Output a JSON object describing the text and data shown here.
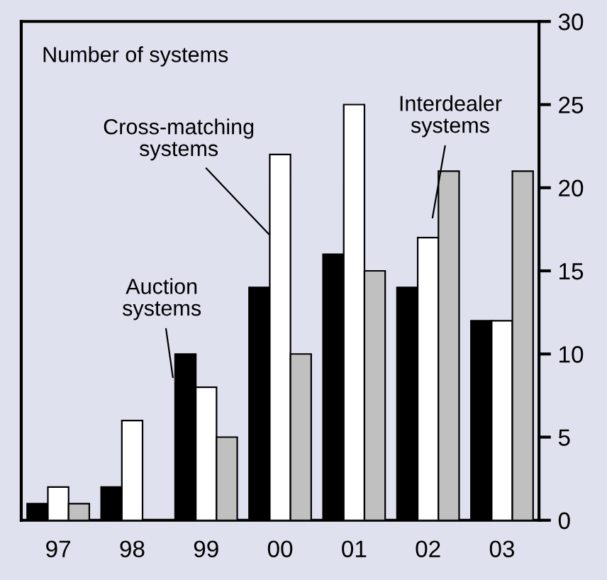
{
  "chart_data": {
    "type": "bar",
    "ylabel": "Number of systems",
    "categories": [
      "97",
      "98",
      "99",
      "00",
      "01",
      "02",
      "03"
    ],
    "series": [
      {
        "name": "Auction systems",
        "color": "#000000",
        "values": [
          1,
          2,
          10,
          14,
          16,
          14,
          12
        ]
      },
      {
        "name": "Cross-matching systems",
        "color": "#ffffff",
        "values": [
          2,
          6,
          8,
          22,
          25,
          17,
          12
        ]
      },
      {
        "name": "Interdealer systems",
        "color": "#c0c0c0",
        "values": [
          1,
          0,
          5,
          10,
          15,
          21,
          21
        ]
      }
    ],
    "ylim": [
      0,
      30
    ],
    "yticks": [
      0,
      5,
      10,
      15,
      20,
      25,
      30
    ],
    "grid": false,
    "legend": false
  }
}
